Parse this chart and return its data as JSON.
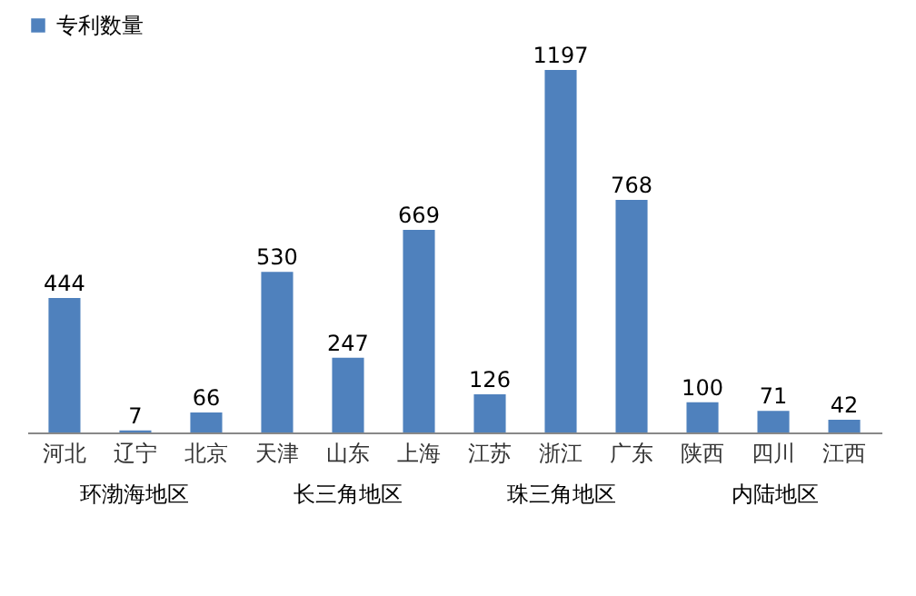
{
  "chart_data": {
    "type": "bar",
    "categories": [
      "河北",
      "辽宁",
      "北京",
      "天津",
      "山东",
      "上海",
      "江苏",
      "浙江",
      "广东",
      "陕西",
      "四川",
      "江西"
    ],
    "series": [
      {
        "name": "专利数量",
        "color": "#4f81bd",
        "values": [
          444,
          7,
          66,
          530,
          247,
          669,
          126,
          1197,
          768,
          100,
          71,
          42
        ]
      }
    ],
    "data_labels": true,
    "legend": "top",
    "grid": false,
    "annotations": [
      "环渤海地区",
      "长三角地区",
      "珠三角地区",
      "内陆地区"
    ]
  }
}
